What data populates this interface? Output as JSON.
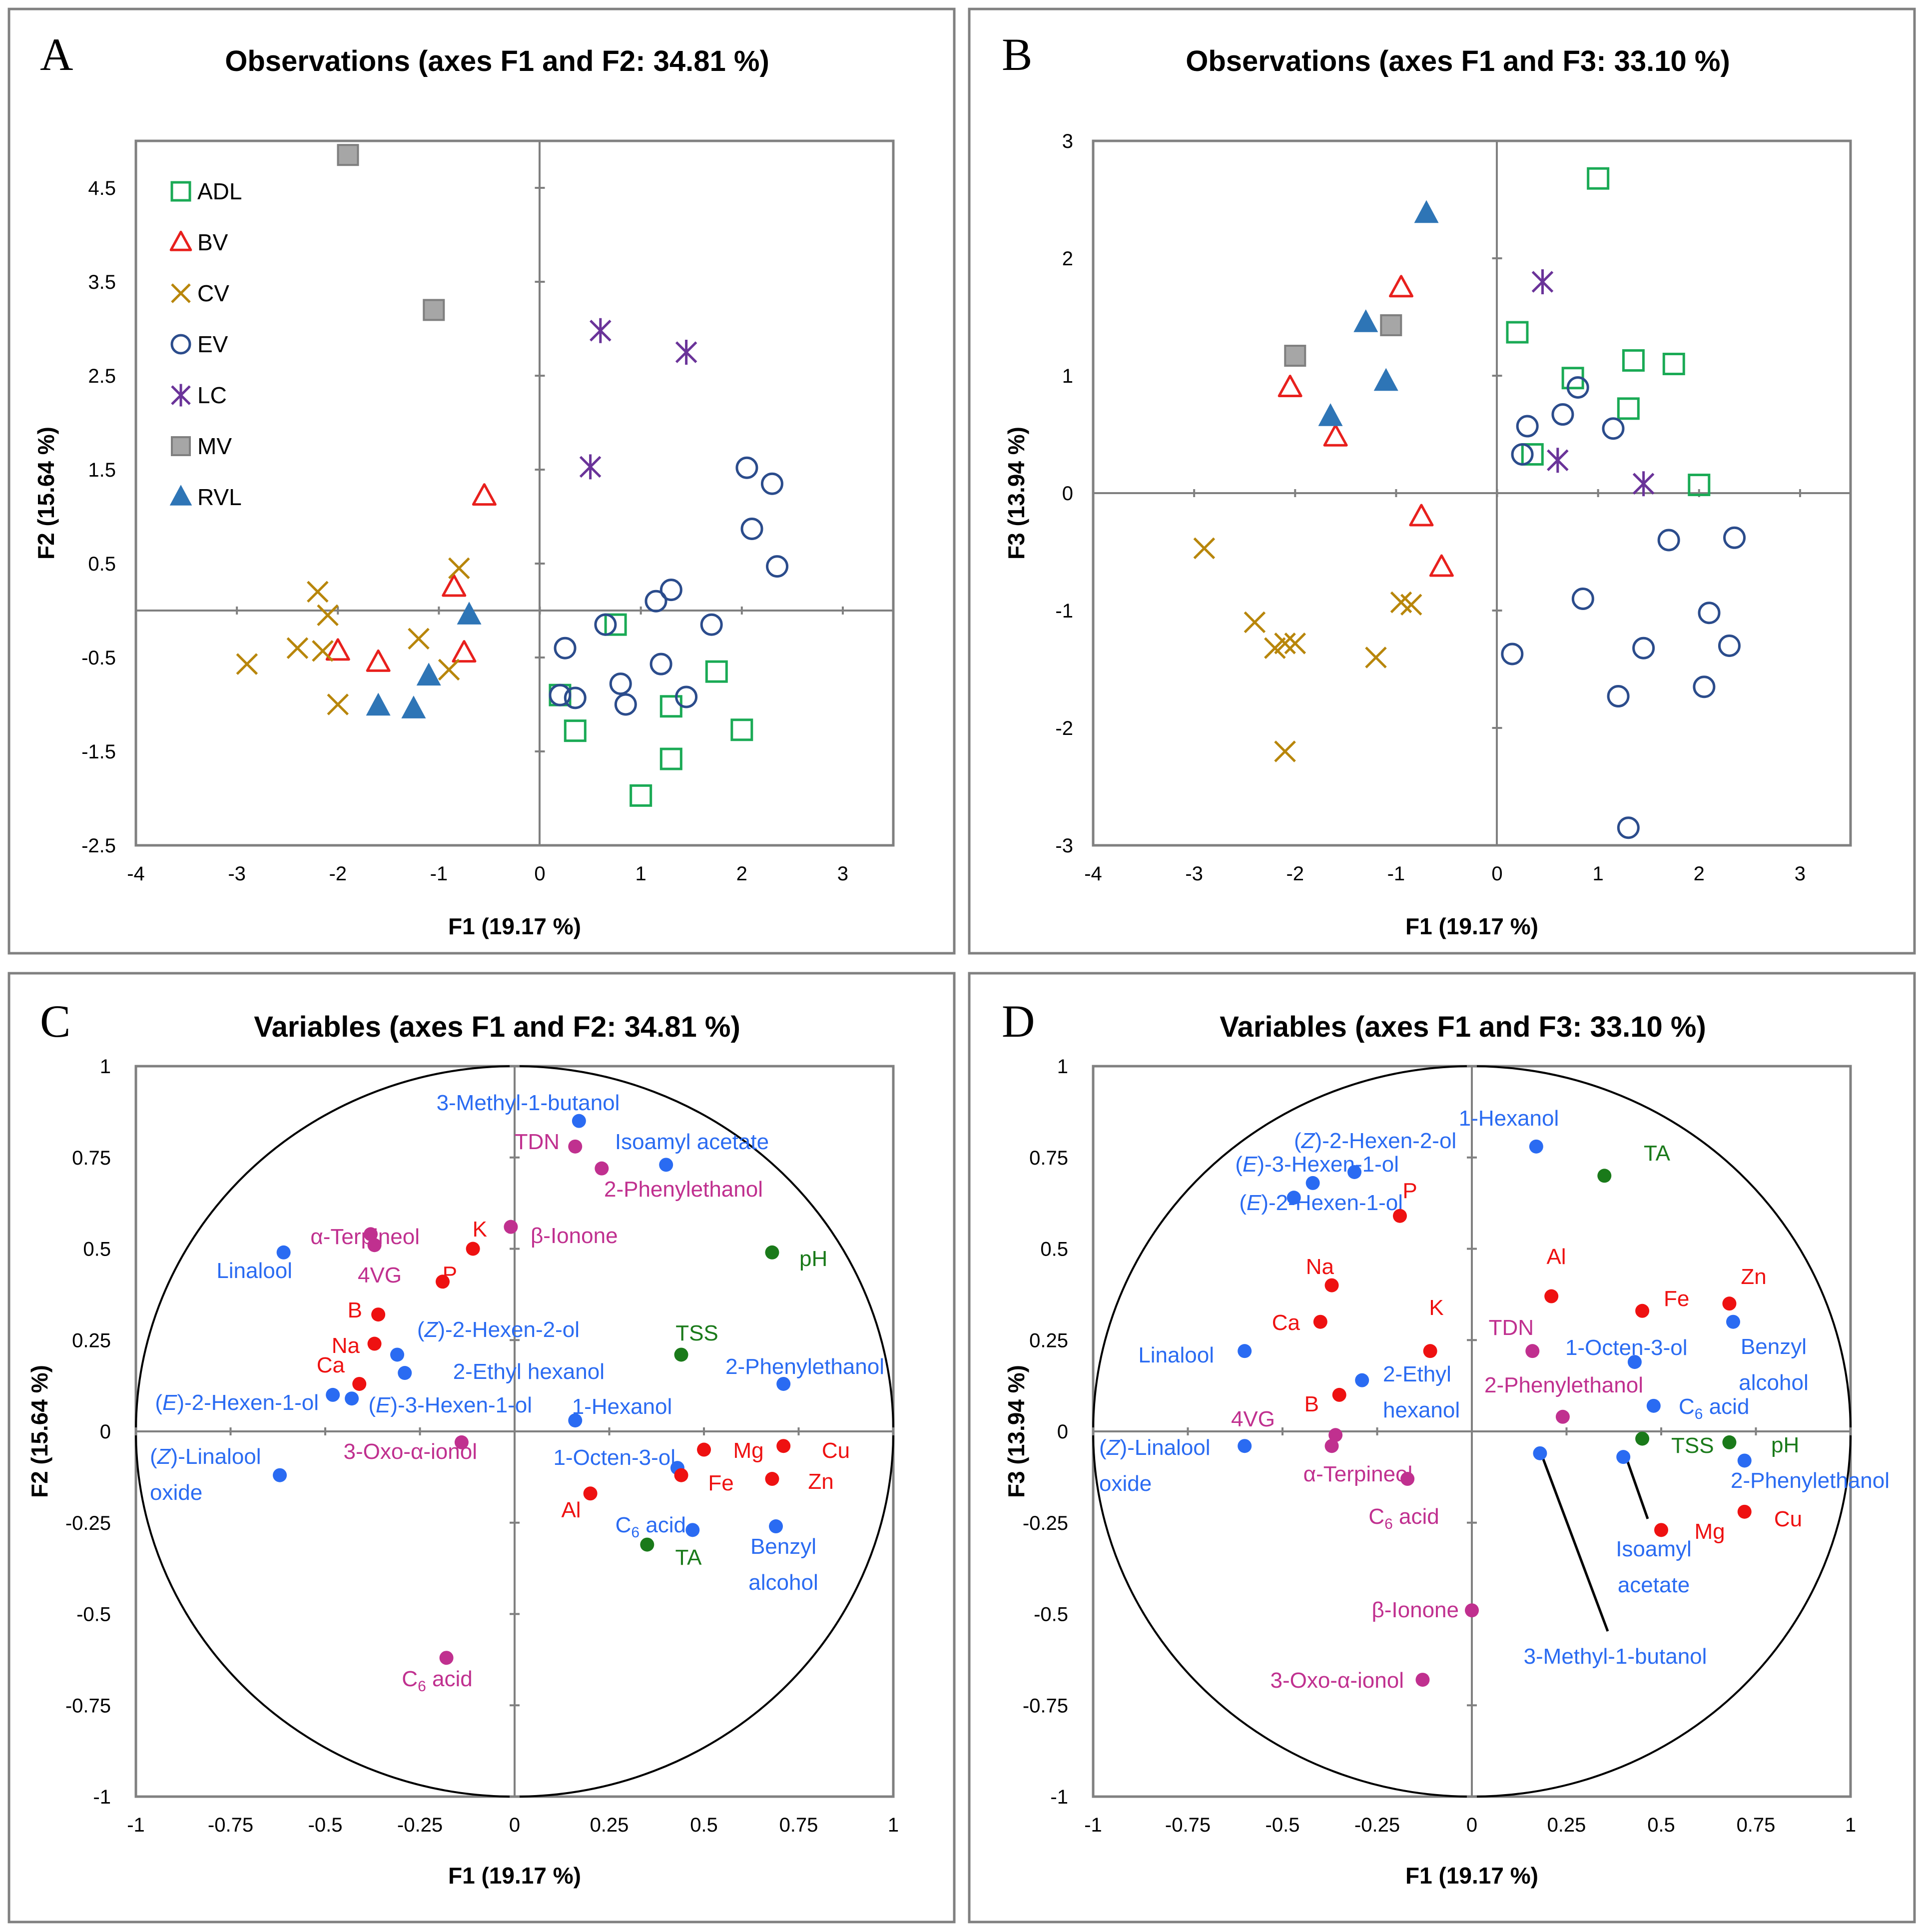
{
  "colors": {
    "ADL": "#1aaa55",
    "BV": "#e8201d",
    "CV": "#b8860b",
    "EV": "#2b4c8c",
    "LC": "#6a3399",
    "MV": "#8c8c8c",
    "RVL": "#2e75b6",
    "blue": "#2a6bf2",
    "red": "#ee1111",
    "magenta": "#c0308f",
    "green": "#1a7a1a",
    "axis": "#808080"
  },
  "chart_data": [
    {
      "type": "scatter",
      "panel": "A",
      "title": "Observations (axes F1 and F2: 34.81 %)",
      "xlabel": "F1 (19.17 %)",
      "ylabel": "F2 (15.64 %)",
      "xlim": [
        -4,
        3.5
      ],
      "ylim": [
        -2.5,
        5
      ],
      "xticks": [
        -4,
        -3,
        -2,
        -1,
        0,
        1,
        2,
        3
      ],
      "yticks": [
        -2.5,
        -1.5,
        -0.5,
        0.5,
        1.5,
        2.5,
        3.5,
        4.5
      ],
      "yticklabels": [
        "-2.5",
        "-1.5",
        "-0.5",
        "0.5",
        "1.5",
        "2.5",
        "3.5",
        "4.5"
      ],
      "legend": {
        "placement": "top-left",
        "entries": [
          {
            "name": "ADL",
            "marker": "square-open"
          },
          {
            "name": "BV",
            "marker": "triangle-open"
          },
          {
            "name": "CV",
            "marker": "x"
          },
          {
            "name": "EV",
            "marker": "circle-open"
          },
          {
            "name": "LC",
            "marker": "star"
          },
          {
            "name": "MV",
            "marker": "square-filled"
          },
          {
            "name": "RVL",
            "marker": "triangle-filled"
          }
        ]
      },
      "series": [
        {
          "name": "ADL",
          "points": [
            [
              0.75,
              -0.15
            ],
            [
              1.3,
              -1.02
            ],
            [
              1.75,
              -0.65
            ],
            [
              0.35,
              -1.28
            ],
            [
              1.3,
              -1.58
            ],
            [
              2.0,
              -1.27
            ],
            [
              1.0,
              -1.97
            ],
            [
              0.2,
              -0.9
            ]
          ]
        },
        {
          "name": "BV",
          "points": [
            [
              -0.55,
              1.22
            ],
            [
              -0.85,
              0.25
            ],
            [
              -0.75,
              -0.45
            ],
            [
              -1.6,
              -0.55
            ],
            [
              -2.0,
              -0.43
            ]
          ]
        },
        {
          "name": "CV",
          "points": [
            [
              -2.2,
              0.2
            ],
            [
              -2.1,
              -0.05
            ],
            [
              -2.4,
              -0.4
            ],
            [
              -2.15,
              -0.43
            ],
            [
              -2.9,
              -0.57
            ],
            [
              -1.2,
              -0.3
            ],
            [
              -0.8,
              0.45
            ],
            [
              -0.9,
              -0.63
            ],
            [
              -2.0,
              -1.0
            ]
          ]
        },
        {
          "name": "EV",
          "points": [
            [
              2.05,
              1.52
            ],
            [
              2.3,
              1.35
            ],
            [
              2.1,
              0.87
            ],
            [
              2.35,
              0.47
            ],
            [
              1.3,
              0.22
            ],
            [
              1.15,
              0.1
            ],
            [
              0.65,
              -0.15
            ],
            [
              0.25,
              -0.4
            ],
            [
              1.2,
              -0.57
            ],
            [
              1.7,
              -0.15
            ],
            [
              0.8,
              -0.78
            ],
            [
              0.85,
              -1.0
            ],
            [
              0.35,
              -0.93
            ],
            [
              0.2,
              -0.9
            ],
            [
              1.45,
              -0.92
            ]
          ]
        },
        {
          "name": "LC",
          "points": [
            [
              0.6,
              2.98
            ],
            [
              1.45,
              2.75
            ],
            [
              0.5,
              1.53
            ]
          ]
        },
        {
          "name": "MV",
          "points": [
            [
              -1.9,
              4.85
            ],
            [
              -1.05,
              3.2
            ]
          ]
        },
        {
          "name": "RVL",
          "points": [
            [
              -0.7,
              -0.05
            ],
            [
              -1.1,
              -0.7
            ],
            [
              -1.6,
              -1.02
            ],
            [
              -1.25,
              -1.05
            ]
          ]
        }
      ]
    },
    {
      "type": "scatter",
      "panel": "B",
      "title": "Observations (axes F1 and F3: 33.10 %)",
      "xlabel": "F1 (19.17 %)",
      "ylabel": "F3 (13.94 %)",
      "xlim": [
        -4,
        3.5
      ],
      "ylim": [
        -3,
        3
      ],
      "xticks": [
        -4,
        -3,
        -2,
        -1,
        0,
        1,
        2,
        3
      ],
      "yticks": [
        -3,
        -2,
        -1,
        0,
        1,
        2,
        3
      ],
      "yticklabels": [
        "-3",
        "-2",
        "-1",
        "0",
        "1",
        "2",
        "3"
      ],
      "series": [
        {
          "name": "ADL",
          "points": [
            [
              1.0,
              2.68
            ],
            [
              0.2,
              1.37
            ],
            [
              1.35,
              1.13
            ],
            [
              1.75,
              1.1
            ],
            [
              0.75,
              0.98
            ],
            [
              1.3,
              0.72
            ],
            [
              0.35,
              0.33
            ],
            [
              2.0,
              0.07
            ]
          ]
        },
        {
          "name": "BV",
          "points": [
            [
              -0.95,
              1.75
            ],
            [
              -2.05,
              0.9
            ],
            [
              -1.6,
              0.48
            ],
            [
              -0.75,
              -0.2
            ],
            [
              -0.55,
              -0.63
            ]
          ]
        },
        {
          "name": "CV",
          "points": [
            [
              -2.9,
              -0.47
            ],
            [
              -2.4,
              -1.1
            ],
            [
              -2.2,
              -1.32
            ],
            [
              -2.1,
              -1.28
            ],
            [
              -2.0,
              -1.28
            ],
            [
              -0.95,
              -0.93
            ],
            [
              -0.85,
              -0.95
            ],
            [
              -1.2,
              -1.4
            ],
            [
              -2.1,
              -2.2
            ]
          ]
        },
        {
          "name": "EV",
          "points": [
            [
              0.3,
              0.57
            ],
            [
              0.65,
              0.67
            ],
            [
              0.8,
              0.9
            ],
            [
              1.15,
              0.55
            ],
            [
              0.25,
              0.33
            ],
            [
              1.7,
              -0.4
            ],
            [
              2.35,
              -0.38
            ],
            [
              0.85,
              -0.9
            ],
            [
              2.1,
              -1.02
            ],
            [
              2.3,
              -1.3
            ],
            [
              0.15,
              -1.37
            ],
            [
              1.45,
              -1.32
            ],
            [
              2.05,
              -1.65
            ],
            [
              1.2,
              -1.73
            ],
            [
              1.3,
              -2.85
            ]
          ]
        },
        {
          "name": "LC",
          "points": [
            [
              0.45,
              1.8
            ],
            [
              0.6,
              0.28
            ],
            [
              1.45,
              0.08
            ]
          ]
        },
        {
          "name": "MV",
          "points": [
            [
              -2.0,
              1.17
            ],
            [
              -1.05,
              1.43
            ]
          ]
        },
        {
          "name": "RVL",
          "points": [
            [
              -0.7,
              2.38
            ],
            [
              -1.3,
              1.45
            ],
            [
              -1.1,
              0.95
            ],
            [
              -1.65,
              0.65
            ]
          ]
        }
      ]
    },
    {
      "type": "scatter",
      "subtype": "correlation-circle",
      "panel": "C",
      "title": "Variables (axes F1 and F2: 34.81 %)",
      "xlabel": "F1 (19.17 %)",
      "ylabel": "F2 (15.64 %)",
      "xlim": [
        -1,
        1
      ],
      "ylim": [
        -1,
        1
      ],
      "xticks": [
        -1,
        -0.75,
        -0.5,
        -0.25,
        0,
        0.25,
        0.5,
        0.75,
        1
      ],
      "xticklabels": [
        "-1",
        "-0.75",
        "-0.5",
        "-0.25",
        "0",
        "0.25",
        "0.5",
        "0.75",
        "1"
      ],
      "yticks": [
        -1,
        -0.75,
        -0.5,
        -0.25,
        0,
        0.25,
        0.5,
        0.75,
        1
      ],
      "yticklabels": [
        "-1",
        "-0.75",
        "-0.5",
        "-0.25",
        "0",
        "0.25",
        "0.5",
        "0.75",
        "1"
      ],
      "points": [
        {
          "label": "3-Methyl-1-butanol",
          "x": 0.17,
          "y": 0.85,
          "group": "blue"
        },
        {
          "label": "TDN",
          "x": 0.16,
          "y": 0.78,
          "group": "magenta"
        },
        {
          "label": "Isoamyl acetate",
          "x": 0.4,
          "y": 0.73,
          "group": "blue"
        },
        {
          "label": "2-Phenylethanol",
          "x": 0.23,
          "y": 0.72,
          "group": "magenta"
        },
        {
          "label": "α-Terpineol",
          "x": -0.38,
          "y": 0.54,
          "group": "magenta"
        },
        {
          "label": "4VG",
          "x": -0.37,
          "y": 0.51,
          "group": "magenta"
        },
        {
          "label": "K",
          "x": -0.11,
          "y": 0.5,
          "group": "red"
        },
        {
          "label": "β-Ionone",
          "x": -0.01,
          "y": 0.56,
          "group": "magenta"
        },
        {
          "label": "P",
          "x": -0.19,
          "y": 0.41,
          "group": "red"
        },
        {
          "label": "Linalool",
          "x": -0.61,
          "y": 0.49,
          "group": "blue"
        },
        {
          "label": "pH",
          "x": 0.68,
          "y": 0.49,
          "group": "green"
        },
        {
          "label": "B",
          "x": -0.36,
          "y": 0.32,
          "group": "red"
        },
        {
          "label": "(Z)-2-Hexen-2-ol",
          "x": -0.31,
          "y": 0.21,
          "group": "blue"
        },
        {
          "label": "Na",
          "x": -0.37,
          "y": 0.24,
          "group": "red"
        },
        {
          "label": "TSS",
          "x": 0.44,
          "y": 0.21,
          "group": "green"
        },
        {
          "label": "2-Ethyl hexanol",
          "x": -0.29,
          "y": 0.16,
          "group": "blue"
        },
        {
          "label": "Ca",
          "x": -0.41,
          "y": 0.13,
          "group": "red"
        },
        {
          "label": "2-Phenylethanol",
          "x": 0.71,
          "y": 0.13,
          "group": "blue"
        },
        {
          "label": "(E)-2-Hexen-1-ol",
          "x": -0.48,
          "y": 0.1,
          "group": "blue"
        },
        {
          "label": "(E)-3-Hexen-1-ol",
          "x": -0.43,
          "y": 0.09,
          "group": "blue"
        },
        {
          "label": "1-Hexanol",
          "x": 0.16,
          "y": 0.03,
          "group": "blue"
        },
        {
          "label": "3-Oxo-α-ionol",
          "x": -0.14,
          "y": -0.03,
          "group": "magenta"
        },
        {
          "label": "(Z)-Linalool oxide",
          "x": -0.62,
          "y": -0.12,
          "group": "blue"
        },
        {
          "label": "1-Octen-3-ol",
          "x": 0.43,
          "y": -0.1,
          "group": "blue"
        },
        {
          "label": "Mg",
          "x": 0.5,
          "y": -0.05,
          "group": "red"
        },
        {
          "label": "Cu",
          "x": 0.71,
          "y": -0.04,
          "group": "red"
        },
        {
          "label": "Fe",
          "x": 0.44,
          "y": -0.12,
          "group": "red"
        },
        {
          "label": "Zn",
          "x": 0.68,
          "y": -0.13,
          "group": "red"
        },
        {
          "label": "Al",
          "x": 0.2,
          "y": -0.17,
          "group": "red"
        },
        {
          "label": "C6 acid",
          "x": 0.47,
          "y": -0.27,
          "group": "blue"
        },
        {
          "label": "Benzyl alcohol",
          "x": 0.69,
          "y": -0.26,
          "group": "blue"
        },
        {
          "label": "TA",
          "x": 0.35,
          "y": -0.31,
          "group": "green"
        },
        {
          "label": "C6 acid",
          "x": -0.18,
          "y": -0.62,
          "group": "magenta"
        }
      ]
    },
    {
      "type": "scatter",
      "subtype": "correlation-circle",
      "panel": "D",
      "title": "Variables (axes F1 and F3: 33.10 %)",
      "xlabel": "F1 (19.17 %)",
      "ylabel": "F3 (13.94 %)",
      "xlim": [
        -1,
        1
      ],
      "ylim": [
        -1,
        1
      ],
      "xticks": [
        -1,
        -0.75,
        -0.5,
        -0.25,
        0,
        0.25,
        0.5,
        0.75,
        1
      ],
      "xticklabels": [
        "-1",
        "-0.75",
        "-0.5",
        "-0.25",
        "0",
        "0.25",
        "0.5",
        "0.75",
        "1"
      ],
      "yticks": [
        -1,
        -0.75,
        -0.5,
        -0.25,
        0,
        0.25,
        0.5,
        0.75,
        1
      ],
      "yticklabels": [
        "-1",
        "-0.75",
        "-0.5",
        "-0.25",
        "0",
        "0.25",
        "0.5",
        "0.75",
        "1"
      ],
      "points": [
        {
          "label": "1-Hexanol",
          "x": 0.17,
          "y": 0.78,
          "group": "blue"
        },
        {
          "label": "(Z)-2-Hexen-2-ol",
          "x": -0.31,
          "y": 0.71,
          "group": "blue"
        },
        {
          "label": "TA",
          "x": 0.35,
          "y": 0.7,
          "group": "green"
        },
        {
          "label": "(E)-3-Hexen-1-ol",
          "x": -0.42,
          "y": 0.68,
          "group": "blue"
        },
        {
          "label": "(E)-2-Hexen-1-ol",
          "x": -0.47,
          "y": 0.64,
          "group": "blue"
        },
        {
          "label": "P",
          "x": -0.19,
          "y": 0.59,
          "group": "red"
        },
        {
          "label": "Na",
          "x": -0.37,
          "y": 0.4,
          "group": "red"
        },
        {
          "label": "Al",
          "x": 0.21,
          "y": 0.37,
          "group": "red"
        },
        {
          "label": "Fe",
          "x": 0.45,
          "y": 0.33,
          "group": "red"
        },
        {
          "label": "Zn",
          "x": 0.68,
          "y": 0.35,
          "group": "red"
        },
        {
          "label": "Ca",
          "x": -0.4,
          "y": 0.3,
          "group": "red"
        },
        {
          "label": "K",
          "x": -0.11,
          "y": 0.22,
          "group": "red"
        },
        {
          "label": "Benzyl alcohol",
          "x": 0.69,
          "y": 0.3,
          "group": "blue"
        },
        {
          "label": "TDN",
          "x": 0.16,
          "y": 0.22,
          "group": "magenta"
        },
        {
          "label": "1-Octen-3-ol",
          "x": 0.43,
          "y": 0.19,
          "group": "blue"
        },
        {
          "label": "Linalool",
          "x": -0.6,
          "y": 0.22,
          "group": "blue"
        },
        {
          "label": "2-Ethyl hexanol",
          "x": -0.29,
          "y": 0.14,
          "group": "blue"
        },
        {
          "label": "B",
          "x": -0.35,
          "y": 0.1,
          "group": "red"
        },
        {
          "label": "2-Phenylethanol",
          "x": 0.24,
          "y": 0.04,
          "group": "magenta"
        },
        {
          "label": "C6 acid",
          "x": 0.48,
          "y": 0.07,
          "group": "blue"
        },
        {
          "label": "4VG",
          "x": -0.36,
          "y": -0.01,
          "group": "magenta"
        },
        {
          "label": "α-Terpineol",
          "x": -0.37,
          "y": -0.04,
          "group": "magenta"
        },
        {
          "label": "(Z)-Linalool oxide",
          "x": -0.6,
          "y": -0.04,
          "group": "blue"
        },
        {
          "label": "TSS",
          "x": 0.45,
          "y": -0.02,
          "group": "green"
        },
        {
          "label": "pH",
          "x": 0.68,
          "y": -0.03,
          "group": "green"
        },
        {
          "label": "2-Phenylethanol",
          "x": 0.72,
          "y": -0.08,
          "group": "blue"
        },
        {
          "label": "Isoamyl acetate",
          "x": 0.4,
          "y": -0.07,
          "group": "blue"
        },
        {
          "label": "3-Methyl-1-butanol",
          "x": 0.18,
          "y": -0.06,
          "group": "blue"
        },
        {
          "label": "C6 acid",
          "x": -0.17,
          "y": -0.13,
          "group": "magenta"
        },
        {
          "label": "Mg",
          "x": 0.5,
          "y": -0.27,
          "group": "red"
        },
        {
          "label": "Cu",
          "x": 0.72,
          "y": -0.22,
          "group": "red"
        },
        {
          "label": "β-Ionone",
          "x": 0.0,
          "y": -0.49,
          "group": "magenta"
        },
        {
          "label": "3-Oxo-α-ionol",
          "x": -0.13,
          "y": -0.68,
          "group": "magenta"
        }
      ]
    }
  ]
}
